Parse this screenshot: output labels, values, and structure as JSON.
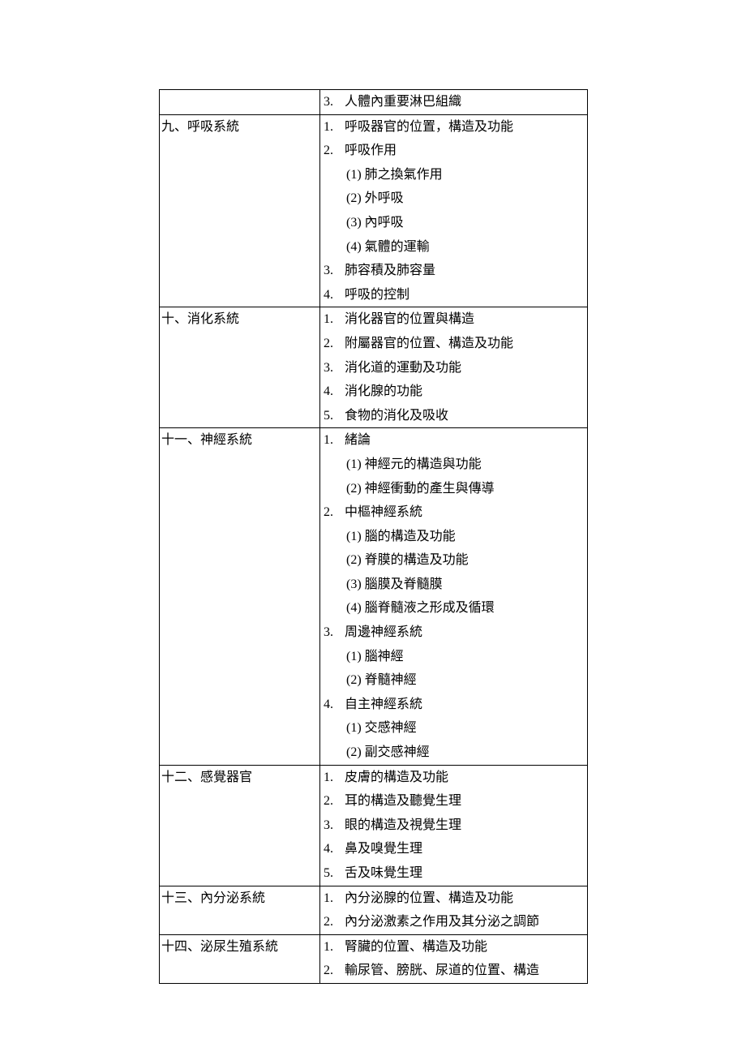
{
  "rows": [
    {
      "left": "",
      "right": [
        {
          "type": "item",
          "num": "3.",
          "text": "人體內重要淋巴組織"
        }
      ]
    },
    {
      "left": "九、呼吸系統",
      "right": [
        {
          "type": "item",
          "num": "1.",
          "text": "呼吸器官的位置，構造及功能"
        },
        {
          "type": "item",
          "num": "2.",
          "text": "呼吸作用"
        },
        {
          "type": "sub",
          "text": "(1) 肺之換氣作用"
        },
        {
          "type": "sub",
          "text": "(2) 外呼吸"
        },
        {
          "type": "sub",
          "text": "(3) 內呼吸"
        },
        {
          "type": "sub",
          "text": "(4) 氣體的運輸"
        },
        {
          "type": "item",
          "num": "3.",
          "text": "肺容積及肺容量"
        },
        {
          "type": "item",
          "num": "4.",
          "text": "呼吸的控制"
        }
      ]
    },
    {
      "left": "十、消化系統",
      "right": [
        {
          "type": "item",
          "num": "1.",
          "text": "消化器官的位置與構造"
        },
        {
          "type": "item",
          "num": "2.",
          "text": "附屬器官的位置、構造及功能"
        },
        {
          "type": "item",
          "num": "3.",
          "text": "消化道的運動及功能"
        },
        {
          "type": "item",
          "num": "4.",
          "text": "消化腺的功能"
        },
        {
          "type": "item",
          "num": "5.",
          "text": "食物的消化及吸收"
        }
      ]
    },
    {
      "left": "十一、神經系統",
      "right": [
        {
          "type": "item",
          "num": "1.",
          "text": "緒論"
        },
        {
          "type": "sub",
          "text": "(1) 神經元的構造與功能"
        },
        {
          "type": "sub",
          "text": "(2) 神經衝動的產生與傳導"
        },
        {
          "type": "item",
          "num": "2.",
          "text": "中樞神經系統"
        },
        {
          "type": "sub",
          "text": "(1) 腦的構造及功能"
        },
        {
          "type": "sub",
          "text": "(2) 脊膜的構造及功能"
        },
        {
          "type": "sub",
          "text": "(3) 腦膜及脊髓膜"
        },
        {
          "type": "sub",
          "text": "(4) 腦脊髓液之形成及循環"
        },
        {
          "type": "item",
          "num": "3.",
          "text": "周邊神經系統"
        },
        {
          "type": "sub",
          "text": "(1) 腦神經"
        },
        {
          "type": "sub",
          "text": "(2) 脊髓神經"
        },
        {
          "type": "item",
          "num": "4.",
          "text": "自主神經系統"
        },
        {
          "type": "sub",
          "text": "(1) 交感神經"
        },
        {
          "type": "sub",
          "text": "(2) 副交感神經"
        }
      ]
    },
    {
      "left": "十二、感覺器官",
      "right": [
        {
          "type": "item",
          "num": "1.",
          "text": "皮膚的構造及功能"
        },
        {
          "type": "item",
          "num": "2.",
          "text": "耳的構造及聽覺生理"
        },
        {
          "type": "item",
          "num": "3.",
          "text": "眼的構造及視覺生理"
        },
        {
          "type": "item",
          "num": "4.",
          "text": "鼻及嗅覺生理"
        },
        {
          "type": "item",
          "num": "5.",
          "text": "舌及味覺生理"
        }
      ]
    },
    {
      "left": "十三、內分泌系統",
      "right": [
        {
          "type": "item",
          "num": "1.",
          "text": "內分泌腺的位置、構造及功能"
        },
        {
          "type": "item",
          "num": "2.",
          "text": "內分泌激素之作用及其分泌之調節"
        }
      ]
    },
    {
      "left": "十四、泌尿生殖系統",
      "right": [
        {
          "type": "item",
          "num": "1.",
          "text": "腎臟的位置、構造及功能"
        },
        {
          "type": "item",
          "num": "2.",
          "text": "輸尿管、膀胱、尿道的位置、構造"
        }
      ]
    }
  ]
}
